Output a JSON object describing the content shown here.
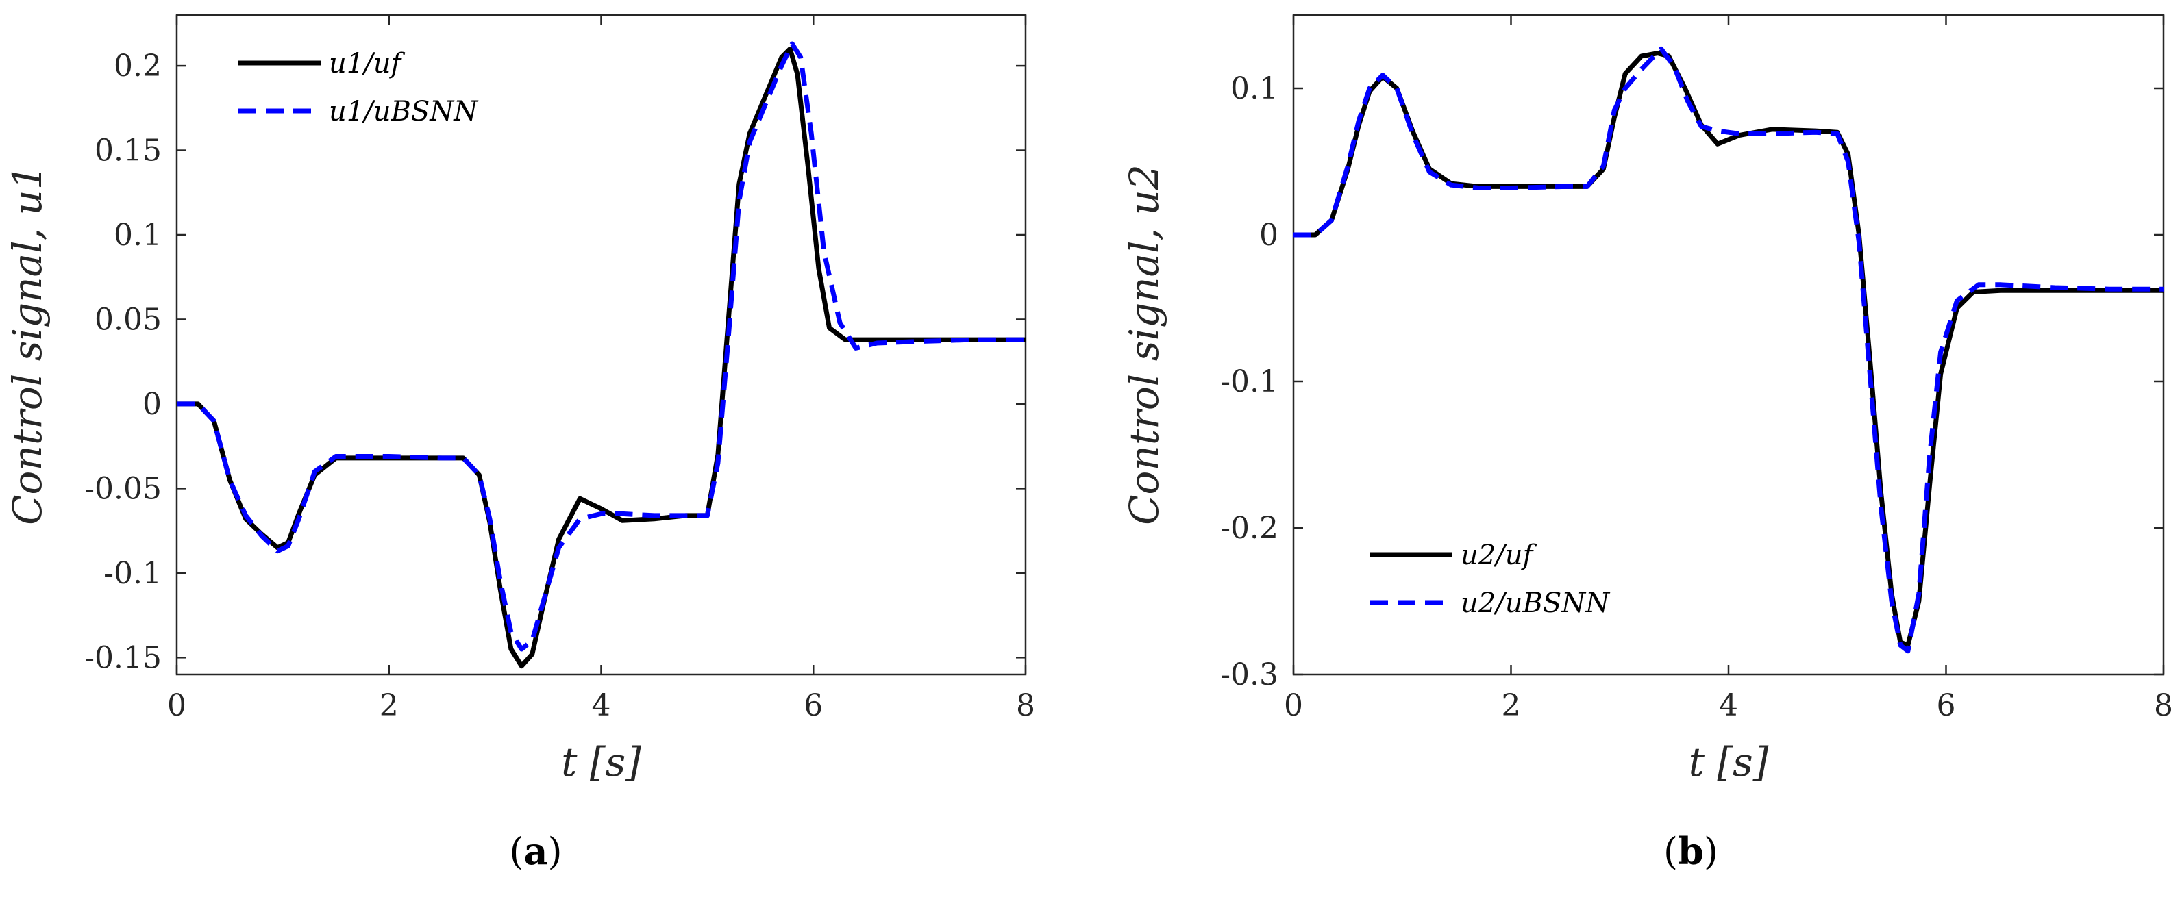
{
  "colors": {
    "solid": "#000000",
    "dashed": "#0000ff",
    "axis": "#262626"
  },
  "chart_data": [
    {
      "type": "line",
      "panel_label": {
        "open": "(",
        "letter": "a",
        "close": ")"
      },
      "xlabel": "t [s]",
      "ylabel": "Control signal, u1",
      "xlim": [
        0,
        8
      ],
      "ylim": [
        -0.16,
        0.23
      ],
      "xticks": [
        0,
        2,
        4,
        6,
        8
      ],
      "xtick_labels": [
        "0",
        "2",
        "4",
        "6",
        "8"
      ],
      "yticks": [
        -0.15,
        -0.1,
        -0.05,
        0,
        0.05,
        0.1,
        0.15,
        0.2
      ],
      "ytick_labels": [
        "-0.15",
        "-0.1",
        "-0.05",
        "0",
        "0.05",
        "0.1",
        "0.15",
        "0.2"
      ],
      "legend_position": "top-left",
      "series": [
        {
          "name": "u1/uf",
          "style": "solid",
          "x": [
            0,
            0.2,
            0.35,
            0.5,
            0.65,
            0.8,
            0.95,
            1.05,
            1.15,
            1.3,
            1.5,
            2.0,
            2.5,
            2.7,
            2.85,
            2.95,
            3.05,
            3.15,
            3.25,
            3.35,
            3.45,
            3.6,
            3.8,
            4.0,
            4.2,
            4.5,
            4.8,
            5.0,
            5.1,
            5.2,
            5.3,
            5.4,
            5.5,
            5.6,
            5.7,
            5.78,
            5.85,
            5.95,
            6.05,
            6.15,
            6.3,
            6.5,
            7.0,
            7.5,
            8.0
          ],
          "y": [
            0,
            0,
            -0.01,
            -0.045,
            -0.068,
            -0.077,
            -0.085,
            -0.082,
            -0.065,
            -0.042,
            -0.032,
            -0.032,
            -0.032,
            -0.032,
            -0.042,
            -0.07,
            -0.11,
            -0.145,
            -0.155,
            -0.148,
            -0.12,
            -0.08,
            -0.056,
            -0.062,
            -0.069,
            -0.068,
            -0.066,
            -0.066,
            -0.03,
            0.05,
            0.13,
            0.16,
            0.175,
            0.19,
            0.205,
            0.21,
            0.195,
            0.14,
            0.08,
            0.045,
            0.038,
            0.038,
            0.038,
            0.038,
            0.038
          ]
        },
        {
          "name": "u1/uBSNN",
          "style": "dashed",
          "x": [
            0,
            0.2,
            0.35,
            0.5,
            0.65,
            0.8,
            0.95,
            1.05,
            1.15,
            1.3,
            1.5,
            2.0,
            2.5,
            2.7,
            2.85,
            2.95,
            3.05,
            3.15,
            3.25,
            3.35,
            3.45,
            3.6,
            3.8,
            4.0,
            4.2,
            4.5,
            4.8,
            5.0,
            5.1,
            5.2,
            5.3,
            5.4,
            5.5,
            5.6,
            5.7,
            5.8,
            5.88,
            5.98,
            6.1,
            6.25,
            6.4,
            6.6,
            7.0,
            7.5,
            8.0
          ],
          "y": [
            0,
            0,
            -0.01,
            -0.045,
            -0.066,
            -0.078,
            -0.087,
            -0.084,
            -0.068,
            -0.04,
            -0.031,
            -0.031,
            -0.032,
            -0.032,
            -0.042,
            -0.068,
            -0.105,
            -0.135,
            -0.145,
            -0.14,
            -0.118,
            -0.085,
            -0.068,
            -0.065,
            -0.065,
            -0.066,
            -0.066,
            -0.066,
            -0.035,
            0.04,
            0.12,
            0.155,
            0.17,
            0.185,
            0.2,
            0.213,
            0.205,
            0.16,
            0.09,
            0.048,
            0.033,
            0.036,
            0.037,
            0.038,
            0.038
          ]
        }
      ]
    },
    {
      "type": "line",
      "panel_label": {
        "open": "(",
        "letter": "b",
        "close": ")"
      },
      "xlabel": "t [s]",
      "ylabel": "Control signal, u2",
      "xlim": [
        0,
        8
      ],
      "ylim": [
        -0.3,
        0.15
      ],
      "xticks": [
        0,
        2,
        4,
        6,
        8
      ],
      "xtick_labels": [
        "0",
        "2",
        "4",
        "6",
        "8"
      ],
      "yticks": [
        -0.3,
        -0.2,
        -0.1,
        0,
        0.1
      ],
      "ytick_labels": [
        "-0.3",
        "-0.2",
        "-0.1",
        "0",
        "0.1"
      ],
      "legend_position": "bottom-left",
      "series": [
        {
          "name": "u2/uf",
          "style": "solid",
          "x": [
            0,
            0.2,
            0.35,
            0.5,
            0.6,
            0.7,
            0.82,
            0.95,
            1.1,
            1.25,
            1.45,
            1.7,
            2.0,
            2.5,
            2.7,
            2.85,
            2.95,
            3.05,
            3.2,
            3.35,
            3.45,
            3.6,
            3.75,
            3.9,
            4.1,
            4.4,
            4.8,
            5.0,
            5.1,
            5.2,
            5.3,
            5.4,
            5.5,
            5.58,
            5.65,
            5.75,
            5.85,
            5.95,
            6.1,
            6.25,
            6.5,
            7.0,
            7.5,
            8.0
          ],
          "y": [
            0,
            0,
            0.01,
            0.045,
            0.075,
            0.098,
            0.108,
            0.1,
            0.07,
            0.045,
            0.035,
            0.033,
            0.033,
            0.033,
            0.033,
            0.045,
            0.08,
            0.11,
            0.122,
            0.124,
            0.122,
            0.1,
            0.075,
            0.062,
            0.068,
            0.072,
            0.071,
            0.07,
            0.055,
            0.0,
            -0.085,
            -0.175,
            -0.245,
            -0.278,
            -0.28,
            -0.25,
            -0.17,
            -0.095,
            -0.05,
            -0.039,
            -0.038,
            -0.038,
            -0.038,
            -0.038
          ]
        },
        {
          "name": "u2/uBSNN",
          "style": "dashed",
          "x": [
            0,
            0.2,
            0.35,
            0.5,
            0.6,
            0.7,
            0.82,
            0.95,
            1.1,
            1.25,
            1.45,
            1.7,
            2.0,
            2.5,
            2.7,
            2.85,
            2.95,
            3.05,
            3.2,
            3.38,
            3.5,
            3.62,
            3.75,
            3.9,
            4.1,
            4.4,
            4.8,
            5.0,
            5.1,
            5.2,
            5.3,
            5.4,
            5.5,
            5.58,
            5.65,
            5.75,
            5.85,
            5.95,
            6.1,
            6.3,
            6.5,
            7.0,
            7.5,
            8.0
          ],
          "y": [
            0,
            0,
            0.01,
            0.047,
            0.078,
            0.1,
            0.109,
            0.1,
            0.068,
            0.043,
            0.034,
            0.032,
            0.032,
            0.033,
            0.033,
            0.047,
            0.085,
            0.1,
            0.113,
            0.127,
            0.115,
            0.092,
            0.074,
            0.071,
            0.069,
            0.069,
            0.07,
            0.069,
            0.05,
            -0.005,
            -0.095,
            -0.185,
            -0.25,
            -0.28,
            -0.284,
            -0.245,
            -0.15,
            -0.08,
            -0.045,
            -0.034,
            -0.034,
            -0.036,
            -0.037,
            -0.037
          ]
        }
      ]
    }
  ]
}
